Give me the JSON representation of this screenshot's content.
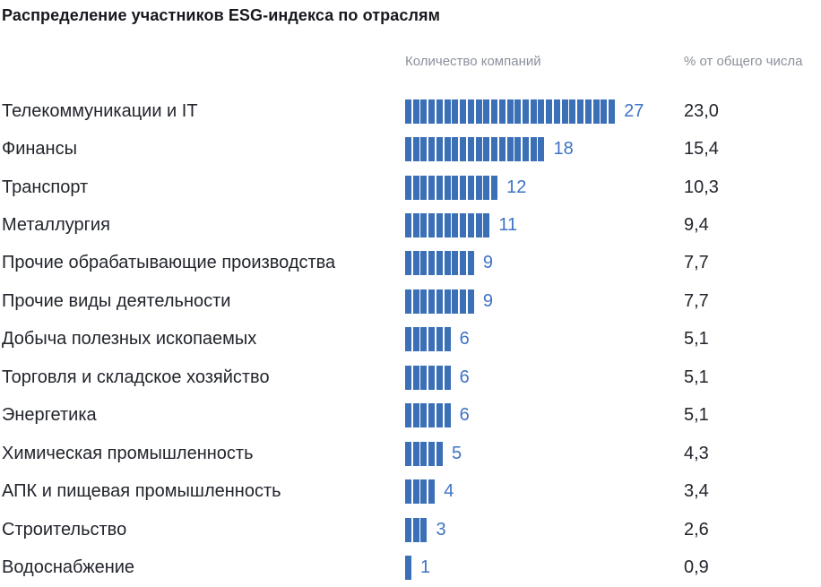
{
  "title": "Распределение участников ESG-индекса по отраслям",
  "columns": {
    "count_header": "Количество компаний",
    "percent_header": "% от общего числа"
  },
  "colors": {
    "bar": "#3b6fb6",
    "count_label": "#3e73c5",
    "text": "#22252c",
    "header_text": "#8b909b"
  },
  "rows": [
    {
      "label": "Телекоммуникации и IT",
      "count": 27,
      "percent": "23,0"
    },
    {
      "label": "Финансы",
      "count": 18,
      "percent": "15,4"
    },
    {
      "label": "Транспорт",
      "count": 12,
      "percent": "10,3"
    },
    {
      "label": "Металлургия",
      "count": 11,
      "percent": "9,4"
    },
    {
      "label": "Прочие обрабатывающие производства",
      "count": 9,
      "percent": "7,7"
    },
    {
      "label": "Прочие виды деятельности",
      "count": 9,
      "percent": "7,7"
    },
    {
      "label": "Добыча полезных ископаемых",
      "count": 6,
      "percent": "5,1"
    },
    {
      "label": "Торговля и складское хозяйство",
      "count": 6,
      "percent": "5,1"
    },
    {
      "label": "Энергетика",
      "count": 6,
      "percent": "5,1"
    },
    {
      "label": "Химическая промышленность",
      "count": 5,
      "percent": "4,3"
    },
    {
      "label": "АПК и пищевая промышленность",
      "count": 4,
      "percent": "3,4"
    },
    {
      "label": "Строительство",
      "count": 3,
      "percent": "2,6"
    },
    {
      "label": "Водоснабжение",
      "count": 1,
      "percent": "0,9"
    }
  ],
  "chart_data": {
    "type": "bar",
    "orientation": "horizontal",
    "unit_segmented": true,
    "title": "Распределение участников ESG-индекса по отраслям",
    "categories": [
      "Телекоммуникации и IT",
      "Финансы",
      "Транспорт",
      "Металлургия",
      "Прочие обрабатывающие производства",
      "Прочие виды деятельности",
      "Добыча полезных ископаемых",
      "Торговля и складское хозяйство",
      "Энергетика",
      "Химическая промышленность",
      "АПК и пищевая промышленность",
      "Строительство",
      "Водоснабжение"
    ],
    "series": [
      {
        "name": "Количество компаний",
        "values": [
          27,
          18,
          12,
          11,
          9,
          9,
          6,
          6,
          6,
          5,
          4,
          3,
          1
        ]
      },
      {
        "name": "% от общего числа",
        "values": [
          23.0,
          15.4,
          10.3,
          9.4,
          7.7,
          7.7,
          5.1,
          5.1,
          5.1,
          4.3,
          3.4,
          2.6,
          0.9
        ]
      }
    ],
    "value_labels_shown": true,
    "decimal_separator": ",",
    "legend": "none",
    "grid": false,
    "axes": "none"
  }
}
